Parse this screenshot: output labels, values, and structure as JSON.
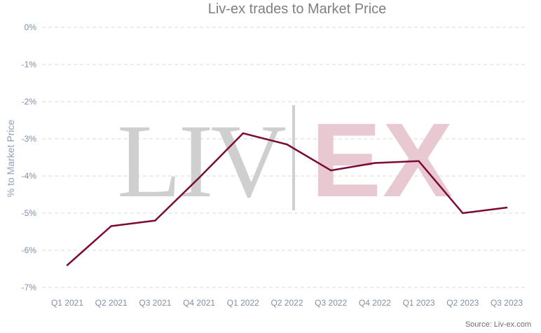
{
  "chart_data": {
    "type": "line",
    "title": "Liv-ex trades to Market Price",
    "xlabel": "",
    "ylabel": "% to Market Price",
    "categories": [
      "Q1 2021",
      "Q2 2021",
      "Q3 2021",
      "Q4 2021",
      "Q1 2022",
      "Q2 2022",
      "Q3 2022",
      "Q4 2022",
      "Q1 2023",
      "Q2 2023",
      "Q3 2023"
    ],
    "values": [
      -6.4,
      -5.35,
      -5.2,
      -4.05,
      -2.85,
      -3.15,
      -3.85,
      -3.65,
      -3.6,
      -5.0,
      -4.85
    ],
    "ylim": [
      -7,
      0
    ],
    "yticks": [
      0,
      -1,
      -2,
      -3,
      -4,
      -5,
      -6,
      -7
    ],
    "ytick_labels": [
      "0%",
      "-1%",
      "-2%",
      "-3%",
      "-4%",
      "-5%",
      "-6%",
      "-7%"
    ],
    "grid": true,
    "grid_style": "dashed",
    "legend": "none",
    "line_color": "#7b0a36",
    "source": "Source: Liv-ex.com"
  },
  "watermark": {
    "left_text": "LIV",
    "right_text": "EX",
    "left_color": "#cfcfcf",
    "right_color": "#e9c9d1",
    "divider_color": "#cfcfcf"
  }
}
